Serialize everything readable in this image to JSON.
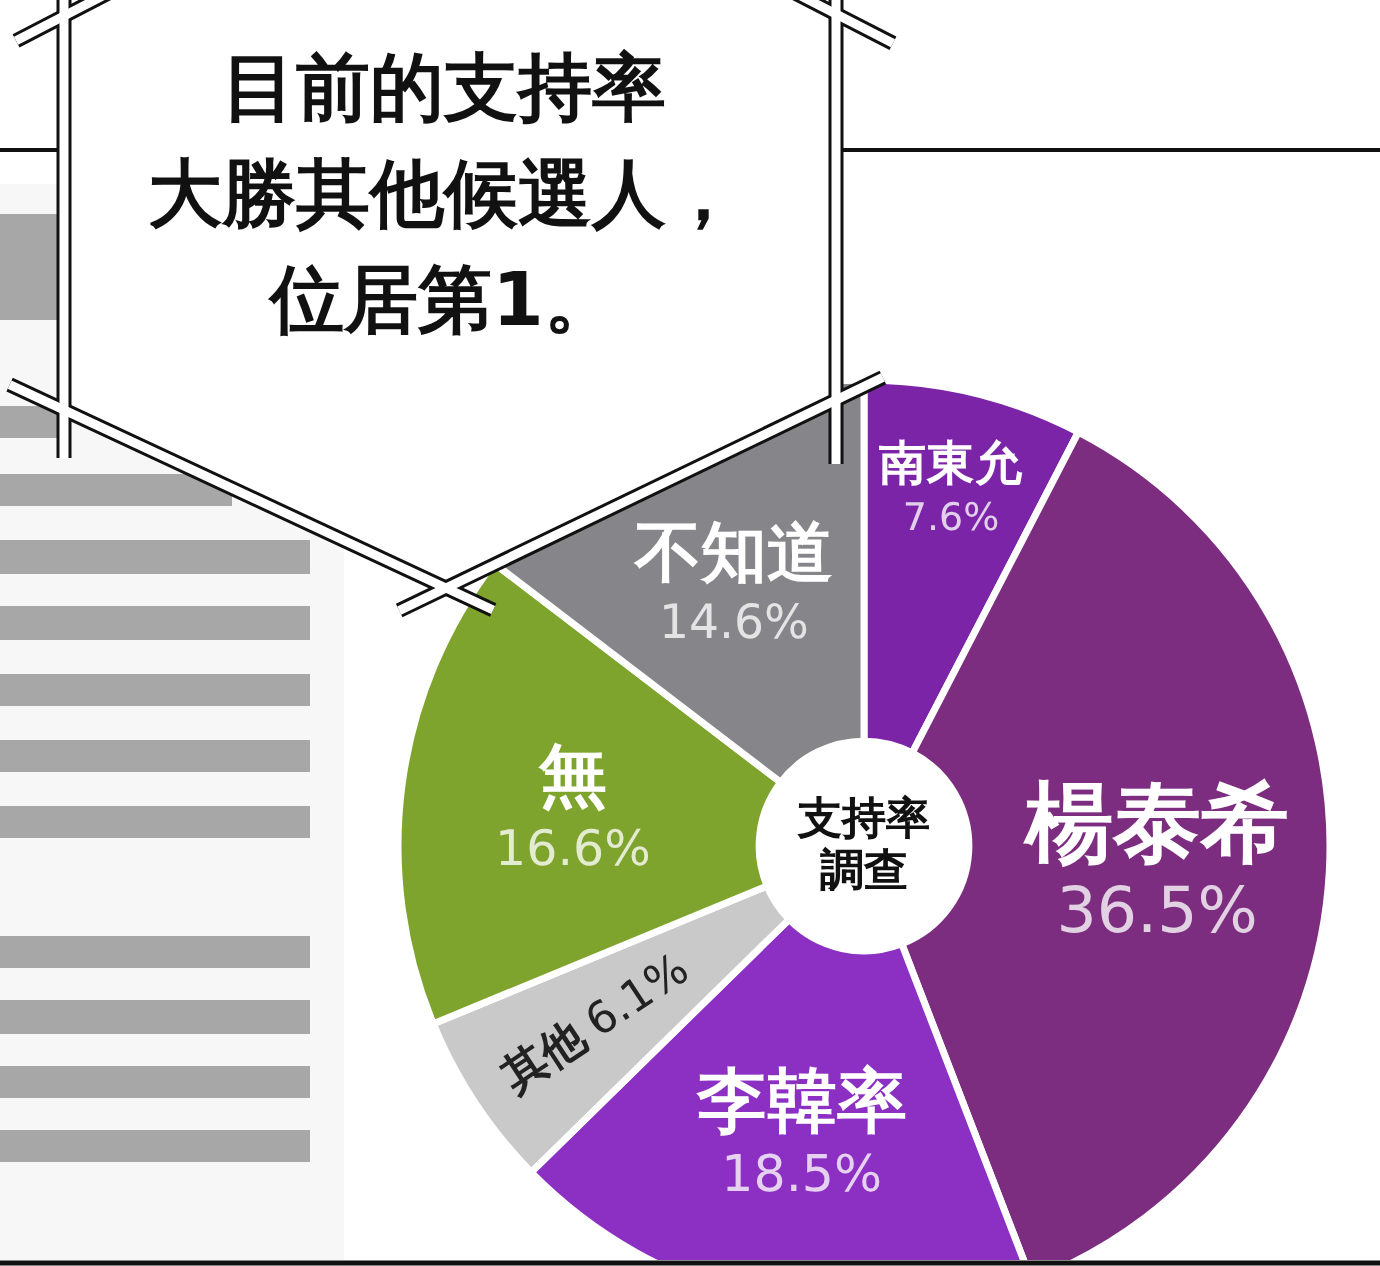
{
  "chart_data": {
    "type": "donut",
    "title": "支持率調查",
    "annotations": [
      "目前的支持率",
      "大勝其他候選人，",
      "位居第1。"
    ],
    "categories": [
      "南東允",
      "楊泰希",
      "李韓率",
      "其他",
      "無",
      "不知道"
    ],
    "values": [
      7.6,
      36.5,
      18.5,
      6.1,
      16.6,
      14.6
    ],
    "colors": [
      "#7b24a8",
      "#7c2d80",
      "#8c2fc3",
      "#c9c9c9",
      "#7ea42e",
      "#86868a"
    ],
    "value_labels": [
      "7.6%",
      "36.5%",
      "18.5%",
      "6.1%",
      "16.6%",
      "14.6%"
    ]
  }
}
